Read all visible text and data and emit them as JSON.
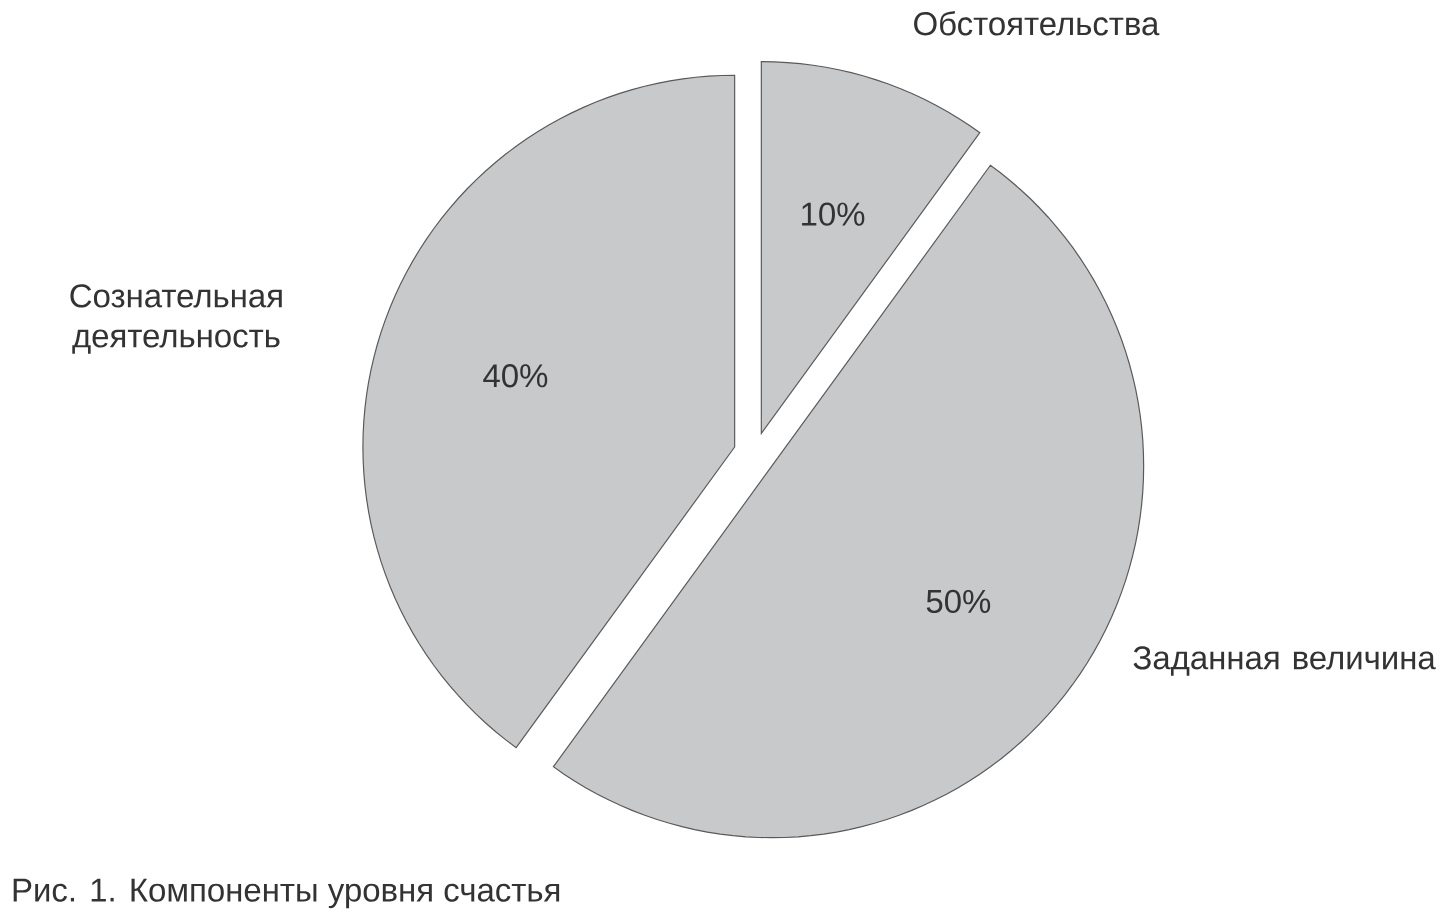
{
  "chart_data": {
    "type": "pie",
    "categories": [
      "Обстоятельства",
      "Заданная величина",
      "Сознательная деятельность"
    ],
    "values": [
      10,
      50,
      40
    ],
    "value_labels": [
      "10%",
      "50%",
      "40%"
    ],
    "colors": [
      "#c8c9cb",
      "#c8c9cb",
      "#c8c9cb"
    ],
    "annotations": [
      "Рис. 1. Компоненты уровня счастья"
    ]
  }
}
